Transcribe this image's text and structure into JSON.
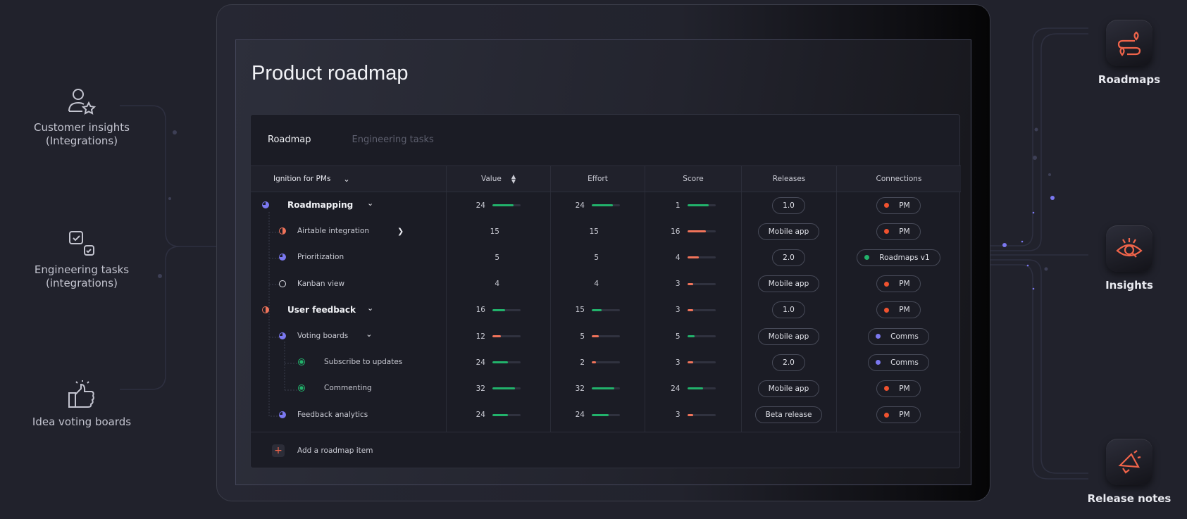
{
  "colors": {
    "accent": "#f0644a",
    "green": "#22b26b",
    "orange": "#f0735a",
    "purple": "#7b78f0",
    "background": "#21222c"
  },
  "left_sources": [
    {
      "icon": "user-star-icon",
      "label_line1": "Customer insights",
      "label_line2": "(Integrations)"
    },
    {
      "icon": "checkboxes-icon",
      "label_line1": "Engineering tasks",
      "label_line2": "(integrations)"
    },
    {
      "icon": "thumbs-up-icon",
      "label_line1": "Idea voting boards",
      "label_line2": ""
    }
  ],
  "right_targets": [
    {
      "icon": "route-map-icon",
      "label": "Roadmaps"
    },
    {
      "icon": "eye-search-icon",
      "label": "Insights"
    },
    {
      "icon": "megaphone-icon",
      "label": "Release notes"
    }
  ],
  "page": {
    "title": "Product roadmap"
  },
  "tabs": [
    {
      "label": "Roadmap",
      "active": true
    },
    {
      "label": "Engineering tasks",
      "active": false
    }
  ],
  "table": {
    "headers": {
      "name": "Ignition for PMs",
      "value": "Value",
      "effort": "Effort",
      "score": "Score",
      "releases": "Releases",
      "connections": "Connections"
    },
    "rows": [
      {
        "name": "Roadmapping",
        "level": 0,
        "status": "purple",
        "toggle": "down",
        "value": {
          "n": "24",
          "fill": 0.75,
          "color": "green"
        },
        "effort": {
          "n": "24",
          "fill": 0.75,
          "color": "green"
        },
        "score": {
          "n": "1",
          "fill": 0.75,
          "color": "green"
        },
        "release": "1.0",
        "connection": {
          "label": "PM",
          "dot": "orange"
        }
      },
      {
        "name": "Airtable integration",
        "level": 1,
        "status": "orange",
        "toggle": "right",
        "value": {
          "n": "15"
        },
        "effort": {
          "n": "15"
        },
        "score": {
          "n": "16",
          "fill": 0.65,
          "color": "orange"
        },
        "release": "Mobile app",
        "connection": {
          "label": "PM",
          "dot": "orange"
        }
      },
      {
        "name": "Prioritization",
        "level": 1,
        "status": "purple",
        "value": {
          "n": "5"
        },
        "effort": {
          "n": "5"
        },
        "score": {
          "n": "4",
          "fill": 0.4,
          "color": "orange"
        },
        "release": "2.0",
        "connection": {
          "label": "Roadmaps v1",
          "dot": "green"
        }
      },
      {
        "name": "Kanban view",
        "level": 1,
        "status": "empty",
        "value": {
          "n": "4"
        },
        "effort": {
          "n": "4"
        },
        "score": {
          "n": "3",
          "fill": 0.2,
          "color": "orange"
        },
        "release": "Mobile app",
        "connection": {
          "label": "PM",
          "dot": "orange"
        }
      },
      {
        "name": "User feedback",
        "level": 0,
        "status": "orange",
        "toggle": "down",
        "value": {
          "n": "16",
          "fill": 0.45,
          "color": "green"
        },
        "effort": {
          "n": "15",
          "fill": 0.35,
          "color": "green"
        },
        "score": {
          "n": "3",
          "fill": 0.2,
          "color": "orange"
        },
        "release": "1.0",
        "connection": {
          "label": "PM",
          "dot": "orange"
        }
      },
      {
        "name": "Voting boards",
        "level": 1,
        "status": "purple",
        "toggle": "down",
        "value": {
          "n": "12",
          "fill": 0.3,
          "color": "orange"
        },
        "effort": {
          "n": "5",
          "fill": 0.25,
          "color": "orange"
        },
        "score": {
          "n": "5",
          "fill": 0.25,
          "color": "green"
        },
        "release": "Mobile app",
        "connection": {
          "label": "Comms",
          "dot": "purple"
        }
      },
      {
        "name": "Subscribe to updates",
        "level": 2,
        "status": "green",
        "value": {
          "n": "24",
          "fill": 0.55,
          "color": "green"
        },
        "effort": {
          "n": "2",
          "fill": 0.15,
          "color": "orange"
        },
        "score": {
          "n": "3",
          "fill": 0.2,
          "color": "orange"
        },
        "release": "2.0",
        "connection": {
          "label": "Comms",
          "dot": "purple"
        }
      },
      {
        "name": "Commenting",
        "level": 2,
        "status": "green",
        "value": {
          "n": "32",
          "fill": 0.8,
          "color": "green"
        },
        "effort": {
          "n": "32",
          "fill": 0.8,
          "color": "green"
        },
        "score": {
          "n": "24",
          "fill": 0.55,
          "color": "green"
        },
        "release": "Mobile app",
        "connection": {
          "label": "PM",
          "dot": "orange"
        }
      },
      {
        "name": "Feedback analytics",
        "level": 1,
        "status": "purple",
        "value": {
          "n": "24",
          "fill": 0.55,
          "color": "green"
        },
        "effort": {
          "n": "24",
          "fill": 0.6,
          "color": "green"
        },
        "score": {
          "n": "3",
          "fill": 0.2,
          "color": "orange"
        },
        "release": "Beta release",
        "connection": {
          "label": "PM",
          "dot": "orange"
        }
      }
    ],
    "add_label": "Add a  roadmap item"
  }
}
